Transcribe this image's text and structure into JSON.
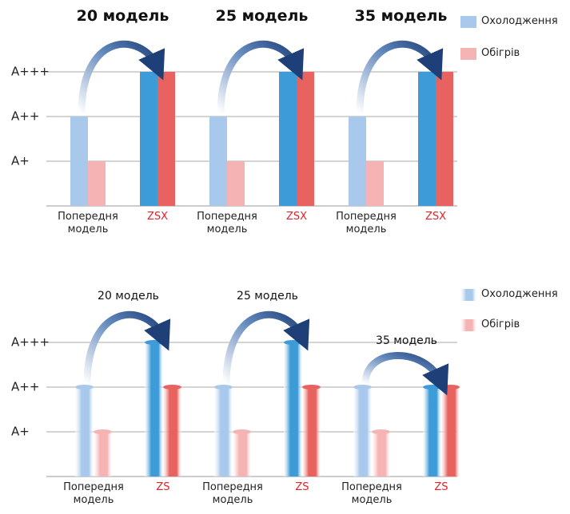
{
  "chart_data": [
    {
      "type": "bar",
      "bar_style": "flat",
      "group_labels": [
        "20 модель",
        "25 модель",
        "35 модель"
      ],
      "categories": [
        "Попередня модель",
        "ZSX",
        "Попередня модель",
        "ZSX",
        "Попередня модель",
        "ZSX"
      ],
      "label_colors": [
        "#222222",
        "#e8202a",
        "#222222",
        "#e8202a",
        "#222222",
        "#e8202a"
      ],
      "series": [
        {
          "name": "Охолодження",
          "color": "#a8c8ec",
          "colors": [
            "#a8c8ec",
            "#3d9bd8",
            "#a8c8ec",
            "#3d9bd8",
            "#a8c8ec",
            "#3d9bd8"
          ],
          "values": [
            2,
            3,
            2,
            3,
            2,
            3
          ]
        },
        {
          "name": "Обігрів",
          "color": "#f5b3b3",
          "colors": [
            "#f5b3b3",
            "#e8625f",
            "#f5b3b3",
            "#e8625f",
            "#f5b3b3",
            "#e8625f"
          ],
          "values": [
            1,
            3,
            1,
            3,
            1,
            3
          ]
        }
      ],
      "ylim": [
        0,
        3
      ],
      "yticks": [
        {
          "value": 1,
          "label": "A+"
        },
        {
          "value": 2,
          "label": "A++"
        },
        {
          "value": 3,
          "label": "A+++"
        }
      ],
      "grid": true
    },
    {
      "type": "bar",
      "bar_style": "cylinder",
      "group_labels": [
        "20 модель",
        "25 модель",
        "35 модель"
      ],
      "categories": [
        "Попередня модель",
        "ZS",
        "Попередня модель",
        "ZS",
        "Попередня модель",
        "ZS"
      ],
      "label_colors": [
        "#222222",
        "#e8202a",
        "#222222",
        "#e8202a",
        "#222222",
        "#e8202a"
      ],
      "series": [
        {
          "name": "Охолодження",
          "color": "#a8c8ec",
          "colors": [
            "#a8c8ec",
            "#3d9bd8",
            "#a8c8ec",
            "#3d9bd8",
            "#a8c8ec",
            "#3d9bd8"
          ],
          "values": [
            2,
            3,
            2,
            3,
            2,
            2
          ]
        },
        {
          "name": "Обігрів",
          "color": "#f5b3b3",
          "colors": [
            "#f5b3b3",
            "#e8625f",
            "#f5b3b3",
            "#e8625f",
            "#f5b3b3",
            "#e8625f"
          ],
          "values": [
            1,
            2,
            1,
            2,
            1,
            2
          ]
        }
      ],
      "ylim": [
        0,
        3
      ],
      "yticks": [
        {
          "value": 1,
          "label": "A+"
        },
        {
          "value": 2,
          "label": "A++"
        },
        {
          "value": 3,
          "label": "A+++"
        }
      ],
      "grid": true
    }
  ]
}
